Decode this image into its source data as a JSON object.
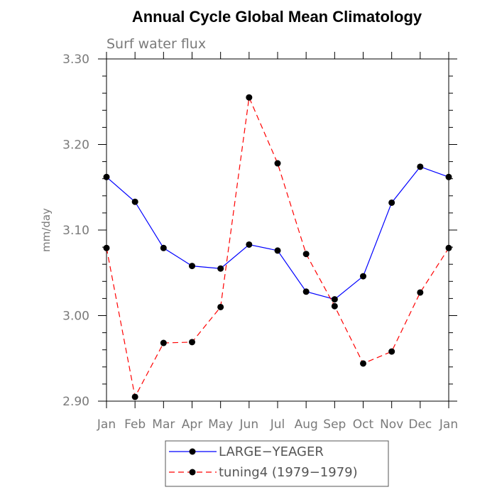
{
  "chart_data": {
    "type": "line",
    "title": "Annual Cycle Global Mean Climatology",
    "subtitle": "Surf water flux",
    "xlabel": "",
    "ylabel": "mm/day",
    "categories": [
      "Jan",
      "Feb",
      "Mar",
      "Apr",
      "May",
      "Jun",
      "Jul",
      "Aug",
      "Sep",
      "Oct",
      "Nov",
      "Dec",
      "Jan"
    ],
    "ylim": [
      2.9,
      3.3
    ],
    "yticks": [
      "2.90",
      "3.00",
      "3.10",
      "3.20",
      "3.30"
    ],
    "grid": false,
    "legend_position": "bottom",
    "series": [
      {
        "name": "LARGE−YEAGER",
        "color": "#0000ff",
        "dash": "solid",
        "values": [
          3.162,
          3.133,
          3.079,
          3.058,
          3.055,
          3.083,
          3.076,
          3.028,
          3.019,
          3.046,
          3.132,
          3.174,
          3.162
        ]
      },
      {
        "name": "tuning4 (1979−1979)",
        "color": "#ff0000",
        "dash": "dashed",
        "values": [
          3.079,
          2.905,
          2.968,
          2.969,
          3.01,
          3.255,
          3.178,
          3.072,
          3.011,
          2.944,
          2.958,
          3.027,
          3.079
        ]
      }
    ]
  }
}
